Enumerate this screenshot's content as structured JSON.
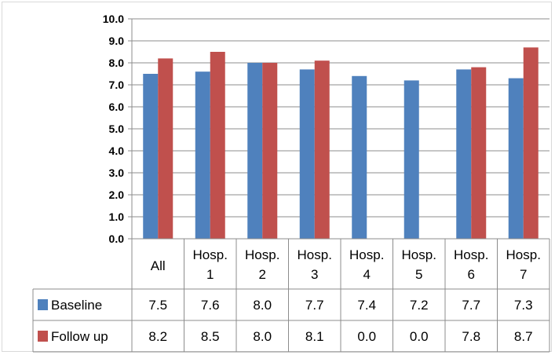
{
  "chart_data": {
    "type": "bar",
    "categories": [
      [
        "All"
      ],
      [
        "Hosp.",
        "1"
      ],
      [
        "Hosp.",
        "2"
      ],
      [
        "Hosp.",
        "3"
      ],
      [
        "Hosp.",
        "4"
      ],
      [
        "Hosp.",
        "5"
      ],
      [
        "Hosp.",
        "6"
      ],
      [
        "Hosp.",
        "7"
      ]
    ],
    "ylim": [
      0,
      10
    ],
    "ytick_step": 1,
    "ytick_labels": [
      "0.0",
      "1.0",
      "2.0",
      "3.0",
      "4.0",
      "5.0",
      "6.0",
      "7.0",
      "8.0",
      "9.0",
      "10.0"
    ],
    "grid": true,
    "legend": "data-table",
    "series": [
      {
        "name": "Baseline",
        "color": "#4f81bd",
        "values": [
          7.5,
          7.6,
          8.0,
          7.7,
          7.4,
          7.2,
          7.7,
          7.3
        ],
        "table_labels": [
          "7.5",
          "7.6",
          "8.0",
          "7.7",
          "7.4",
          "7.2",
          "7.7",
          "7.3"
        ]
      },
      {
        "name": "Follow up",
        "color": "#c0504d",
        "values": [
          8.2,
          8.5,
          8.0,
          8.1,
          0.0,
          0.0,
          7.8,
          8.7
        ],
        "table_labels": [
          "8.2",
          "8.5",
          "8.0",
          "8.1",
          "0.0",
          "0.0",
          "7.8",
          "8.7"
        ]
      }
    ]
  }
}
